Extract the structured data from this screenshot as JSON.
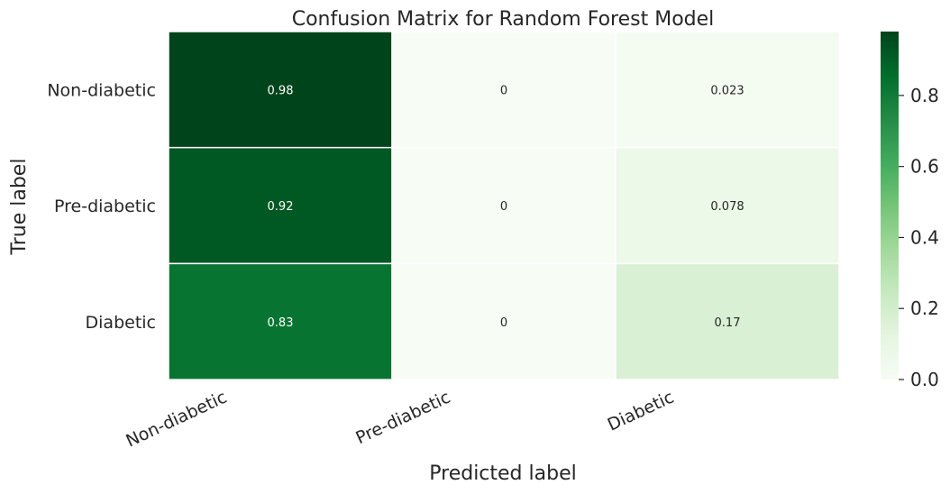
{
  "chart_data": {
    "type": "heatmap",
    "title": "Confusion Matrix for Random Forest Model",
    "xlabel": "Predicted label",
    "ylabel": "True label",
    "x_categories": [
      "Non-diabetic",
      "Pre-diabetic",
      "Diabetic"
    ],
    "y_categories": [
      "Non-diabetic",
      "Pre-diabetic",
      "Diabetic"
    ],
    "values": [
      [
        0.98,
        0,
        0.023
      ],
      [
        0.92,
        0,
        0.078
      ],
      [
        0.83,
        0,
        0.17
      ]
    ],
    "value_labels": [
      [
        "0.98",
        "0",
        "0.023"
      ],
      [
        "0.92",
        "0",
        "0.078"
      ],
      [
        "0.83",
        "0",
        "0.17"
      ]
    ],
    "colormap": "Greens",
    "colorbar": {
      "min": 0.0,
      "max": 0.98,
      "ticks": [
        0.0,
        0.2,
        0.4,
        0.6,
        0.8
      ],
      "tick_labels": [
        "0.0",
        "0.2",
        "0.4",
        "0.6",
        "0.8"
      ]
    },
    "grid": false,
    "cell_separator_color": "#ffffff"
  }
}
